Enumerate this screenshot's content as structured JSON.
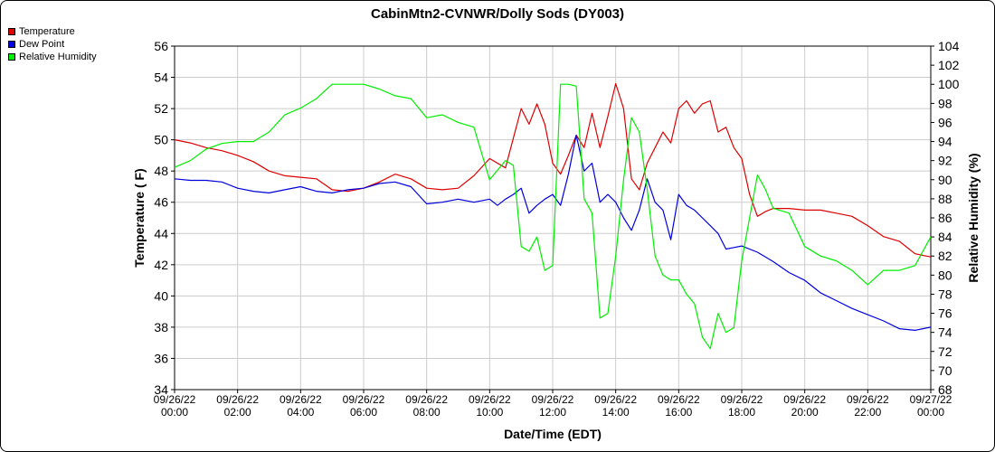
{
  "chart_data": {
    "type": "line",
    "title": "CabinMtn2-CVNWR/Dolly Sods (DY003)",
    "xlabel": "Date/Time (EDT)",
    "ylabel": "Temperature ( F)",
    "y2label": "Relative Humidity (%)",
    "grid": true,
    "legend_position": "top-left",
    "xlim": [
      0,
      24
    ],
    "ylim": [
      34,
      56
    ],
    "y2lim": [
      68,
      104
    ],
    "x_ticks": [
      {
        "date": "09/26/22",
        "time": "00:00"
      },
      {
        "date": "09/26/22",
        "time": "02:00"
      },
      {
        "date": "09/26/22",
        "time": "04:00"
      },
      {
        "date": "09/26/22",
        "time": "06:00"
      },
      {
        "date": "09/26/22",
        "time": "08:00"
      },
      {
        "date": "09/26/22",
        "time": "10:00"
      },
      {
        "date": "09/26/22",
        "time": "12:00"
      },
      {
        "date": "09/26/22",
        "time": "14:00"
      },
      {
        "date": "09/26/22",
        "time": "16:00"
      },
      {
        "date": "09/26/22",
        "time": "18:00"
      },
      {
        "date": "09/26/22",
        "time": "20:00"
      },
      {
        "date": "09/26/22",
        "time": "22:00"
      },
      {
        "date": "09/27/22",
        "time": "00:00"
      }
    ],
    "y_ticks": [
      "34",
      "36",
      "38",
      "40",
      "42",
      "44",
      "46",
      "48",
      "50",
      "52",
      "54",
      "56"
    ],
    "y2_ticks": [
      "68",
      "70",
      "72",
      "74",
      "76",
      "78",
      "80",
      "82",
      "84",
      "86",
      "88",
      "90",
      "92",
      "94",
      "96",
      "98",
      "100",
      "102",
      "104"
    ],
    "series": [
      {
        "name": "Temperature",
        "color": "#dd0000",
        "axis": "left",
        "x": [
          0,
          0.5,
          1,
          1.5,
          2,
          2.5,
          3,
          3.5,
          4,
          4.5,
          5,
          5.5,
          6,
          6.5,
          7,
          7.5,
          8,
          8.5,
          9,
          9.5,
          10,
          10.5,
          11,
          11.25,
          11.5,
          11.75,
          12,
          12.25,
          12.5,
          12.75,
          13,
          13.25,
          13.5,
          13.75,
          14,
          14.25,
          14.5,
          14.75,
          15,
          15.25,
          15.5,
          15.75,
          16,
          16.25,
          16.5,
          16.75,
          17,
          17.25,
          17.5,
          17.75,
          18,
          18.25,
          18.5,
          18.75,
          19,
          19.5,
          20,
          20.5,
          21,
          21.5,
          22,
          22.5,
          23,
          23.5,
          24
        ],
        "values": [
          50.0,
          49.8,
          49.5,
          49.3,
          49.0,
          48.6,
          48.0,
          47.7,
          47.6,
          47.5,
          46.8,
          46.7,
          46.9,
          47.3,
          47.8,
          47.5,
          46.9,
          46.8,
          46.9,
          47.7,
          48.8,
          48.2,
          52.0,
          51.0,
          52.3,
          51.0,
          48.5,
          47.8,
          49.0,
          50.3,
          49.5,
          51.7,
          49.5,
          51.5,
          53.6,
          52.0,
          47.5,
          46.8,
          48.5,
          49.5,
          50.5,
          49.8,
          52.0,
          52.5,
          51.7,
          52.3,
          52.5,
          50.5,
          50.8,
          49.5,
          48.8,
          46.5,
          45.1,
          45.4,
          45.6,
          45.6,
          45.5,
          45.5,
          45.3,
          45.1,
          44.5,
          43.8,
          43.5,
          42.7,
          42.5
        ]
      },
      {
        "name": "Dew Point",
        "color": "#0000dd",
        "axis": "left",
        "x": [
          0,
          0.5,
          1,
          1.5,
          2,
          2.5,
          3,
          3.5,
          4,
          4.5,
          5,
          5.5,
          6,
          6.5,
          7,
          7.5,
          8,
          8.5,
          9,
          9.5,
          10,
          10.25,
          10.5,
          10.75,
          11,
          11.25,
          11.5,
          11.75,
          12,
          12.25,
          12.5,
          12.75,
          13,
          13.25,
          13.5,
          13.75,
          14,
          14.25,
          14.5,
          14.75,
          15,
          15.25,
          15.5,
          15.75,
          16,
          16.25,
          16.5,
          16.75,
          17,
          17.25,
          17.5,
          17.75,
          18,
          18.5,
          19,
          19.5,
          20,
          20.5,
          21,
          21.5,
          22,
          22.5,
          23,
          23.5,
          24
        ],
        "values": [
          47.5,
          47.4,
          47.4,
          47.3,
          46.9,
          46.7,
          46.6,
          46.8,
          47.0,
          46.7,
          46.6,
          46.8,
          46.9,
          47.2,
          47.3,
          47.0,
          45.9,
          46.0,
          46.2,
          46.0,
          46.2,
          45.8,
          46.2,
          46.5,
          46.9,
          45.3,
          45.8,
          46.2,
          46.5,
          45.8,
          47.8,
          50.3,
          48.0,
          48.5,
          46.0,
          46.5,
          46.0,
          45.0,
          44.2,
          45.5,
          47.5,
          46.0,
          45.5,
          43.6,
          46.5,
          45.8,
          45.5,
          45.0,
          44.5,
          44.0,
          43.0,
          43.1,
          43.2,
          42.8,
          42.2,
          41.5,
          41.0,
          40.2,
          39.7,
          39.2,
          38.8,
          38.4,
          37.9,
          37.8,
          38.0
        ]
      },
      {
        "name": "Relative Humidity",
        "color": "#00ee00",
        "axis": "right",
        "x": [
          0,
          0.5,
          1,
          1.5,
          2,
          2.5,
          3,
          3.5,
          4,
          4.5,
          5,
          5.5,
          6,
          6.5,
          7,
          7.5,
          8,
          8.5,
          9,
          9.5,
          10,
          10.25,
          10.5,
          10.75,
          11,
          11.25,
          11.5,
          11.75,
          12,
          12.25,
          12.5,
          12.75,
          13,
          13.25,
          13.5,
          13.75,
          14,
          14.25,
          14.5,
          14.75,
          15,
          15.25,
          15.5,
          15.75,
          16,
          16.25,
          16.5,
          16.75,
          17,
          17.25,
          17.5,
          17.75,
          18,
          18.25,
          18.5,
          18.75,
          19,
          19.5,
          20,
          20.5,
          21,
          21.5,
          22,
          22.5,
          23,
          23.5,
          24
        ],
        "values": [
          91.3,
          92.0,
          93.2,
          93.8,
          94.0,
          94.0,
          95.0,
          96.8,
          97.5,
          98.5,
          100.0,
          100.0,
          100.0,
          99.5,
          98.8,
          98.5,
          96.5,
          96.8,
          96.0,
          95.5,
          90.0,
          91.0,
          92.0,
          91.5,
          83.0,
          82.5,
          84.0,
          80.5,
          81.0,
          100.0,
          100.0,
          99.8,
          88.0,
          86.5,
          75.5,
          76.0,
          82.0,
          90.0,
          96.5,
          95.0,
          89.0,
          82.0,
          80.0,
          79.5,
          79.5,
          78.0,
          77.0,
          73.5,
          72.3,
          76.0,
          74.0,
          74.5,
          81.5,
          86.0,
          90.5,
          89.0,
          87.0,
          86.5,
          83.0,
          82.0,
          81.5,
          80.5,
          79.0,
          80.5,
          80.5,
          81.0,
          84.0
        ]
      }
    ]
  }
}
